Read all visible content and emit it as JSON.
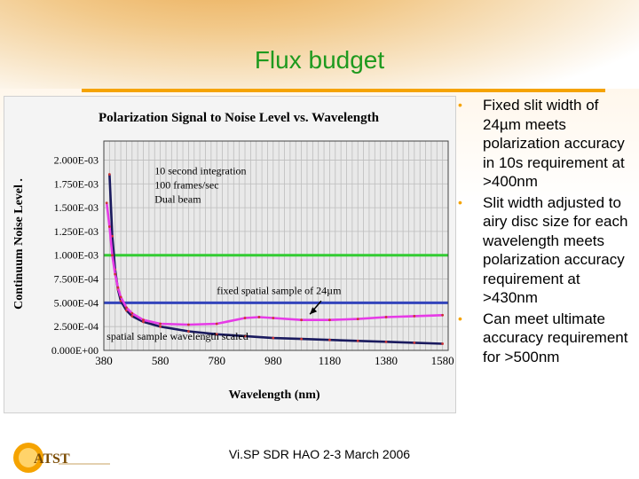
{
  "slide": {
    "title": "Flux budget",
    "footer": "Vi.SP SDR HAO 2-3 March 2006",
    "logo_text": "ATST",
    "bullets": [
      "Fixed slit width of 24µm meets polarization accuracy in 10s requirement at >400nm",
      "Slit width adjusted to airy disc size for each wavelength meets polarization accuracy requirement at >430nm",
      "Can meet ultimate accuracy requirement for >500nm"
    ]
  },
  "colors": {
    "title": "#1f9a1f",
    "accent_rule": "#f5a300",
    "fixed_series": "#1a1a5e",
    "scaled_series": "#e63be6",
    "green_line": "#33cc33",
    "blue_line": "#3344bb"
  },
  "chart_data": {
    "type": "line",
    "title": "Polarization Signal to Noise Level vs. Wavelength",
    "xlabel": "Wavelength (nm)",
    "ylabel": "Continuum Noise Level .",
    "xlim": [
      380,
      1600
    ],
    "ylim": [
      0,
      0.0022
    ],
    "x_ticks": [
      380,
      580,
      780,
      980,
      1180,
      1380,
      1580
    ],
    "y_ticks": [
      {
        "value": 0.0,
        "label": "0.000E+00"
      },
      {
        "value": 0.00025,
        "label": "2.500E-04"
      },
      {
        "value": 0.0005,
        "label": "5.000E-04"
      },
      {
        "value": 0.00075,
        "label": "7.500E-04"
      },
      {
        "value": 0.001,
        "label": "1.000E-03"
      },
      {
        "value": 0.00125,
        "label": "1.250E-03"
      },
      {
        "value": 0.0015,
        "label": "1.500E-03"
      },
      {
        "value": 0.00175,
        "label": "1.750E-03"
      },
      {
        "value": 0.002,
        "label": "2.000E-03"
      }
    ],
    "grid": true,
    "annotations": [
      {
        "text": "10 second integration",
        "x": 560,
        "y": 0.00185
      },
      {
        "text": "100 frames/sec",
        "x": 560,
        "y": 0.0017
      },
      {
        "text": "Dual beam",
        "x": 560,
        "y": 0.00155
      },
      {
        "text": "fixed spatial sample of 24µm",
        "x": 780,
        "y": 0.00059
      },
      {
        "text": "spatial sample wavelength scaled",
        "x": 390,
        "y": 0.00011
      }
    ],
    "hlines": [
      {
        "y": 0.001,
        "color": "#33cc33"
      },
      {
        "y": 0.0005,
        "color": "#3344bb"
      }
    ],
    "series": [
      {
        "color": "#1a1a5e",
        "x": [
          400,
          410,
          420,
          430,
          440,
          460,
          480,
          520,
          580,
          680,
          780,
          880,
          980,
          1080,
          1180,
          1280,
          1380,
          1480,
          1580
        ],
        "y": [
          0.00185,
          0.0012,
          0.00085,
          0.00064,
          0.00052,
          0.00042,
          0.00036,
          0.0003,
          0.00025,
          0.0002,
          0.00017,
          0.00015,
          0.00013,
          0.00012,
          0.00011,
          0.0001,
          9e-05,
          8e-05,
          7e-05
        ]
      },
      {
        "color": "#e63be6",
        "x": [
          390,
          400,
          410,
          420,
          430,
          440,
          460,
          480,
          520,
          580,
          680,
          780,
          880,
          930,
          980,
          1080,
          1180,
          1280,
          1380,
          1480,
          1580
        ],
        "y": [
          0.00155,
          0.0013,
          0.001,
          0.0008,
          0.00066,
          0.00056,
          0.00045,
          0.00039,
          0.00032,
          0.00028,
          0.00027,
          0.00028,
          0.00034,
          0.00035,
          0.00034,
          0.00032,
          0.00032,
          0.00033,
          0.00035,
          0.00036,
          0.00037
        ]
      }
    ]
  }
}
